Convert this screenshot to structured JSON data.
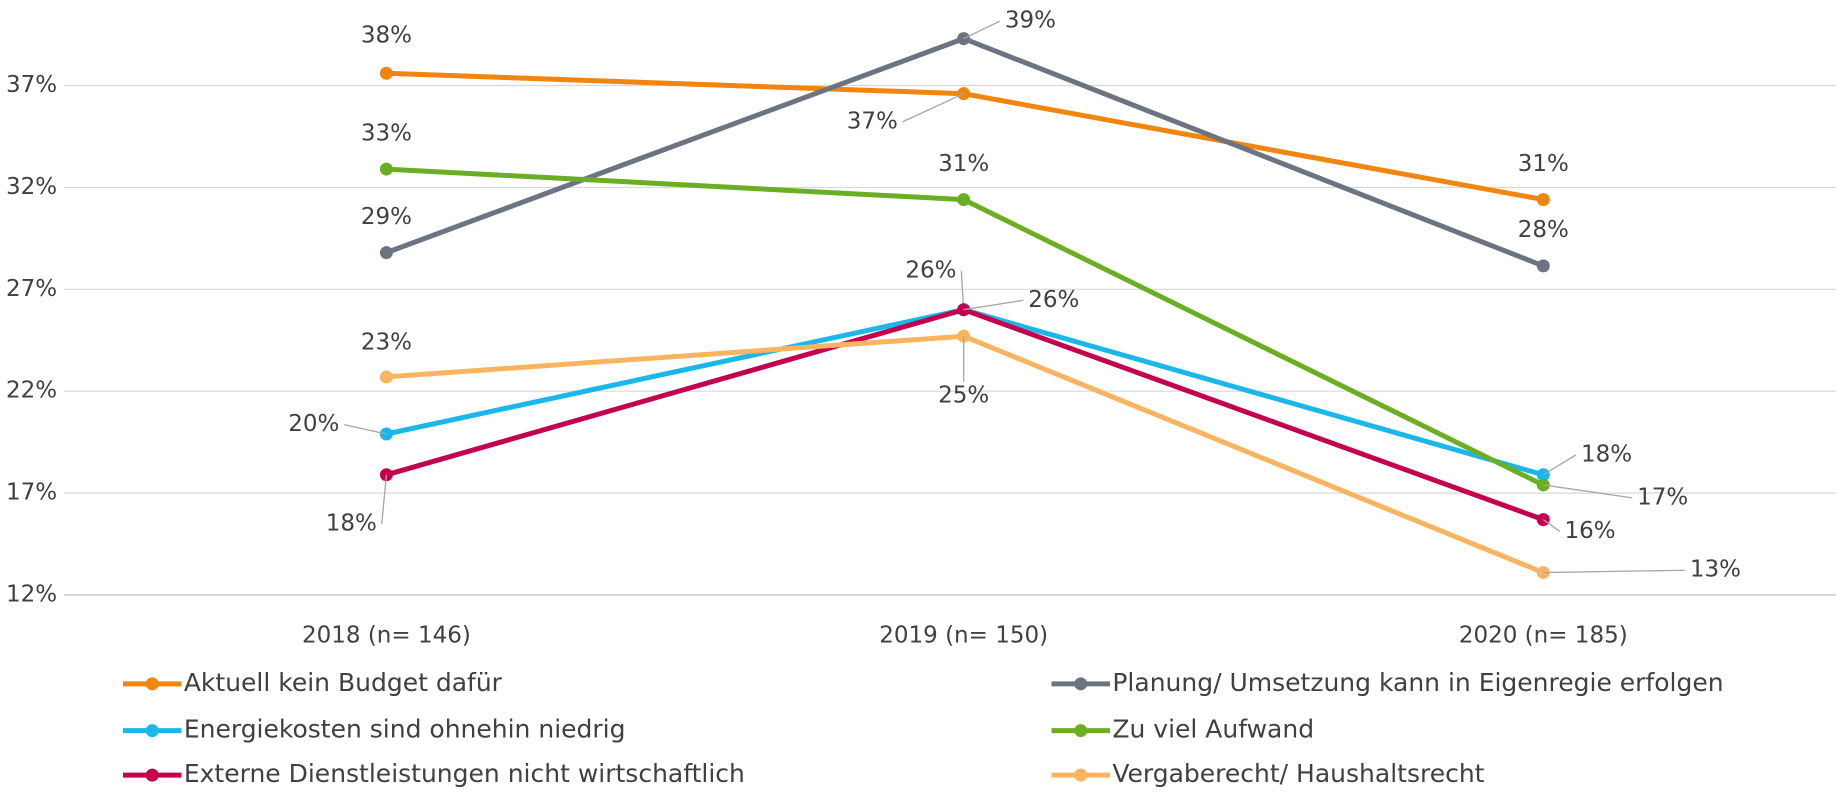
{
  "chart_data": {
    "type": "line",
    "categories": [
      "2018 (n= 146)",
      "2019 (n= 150)",
      "2020 (n= 185)"
    ],
    "series": [
      {
        "name": "Aktuell kein Budget dafür",
        "color": "#f0850f",
        "values": [
          37.6,
          36.6,
          31.4
        ],
        "value_labels": [
          "38%",
          "37%",
          "31%"
        ]
      },
      {
        "name": "Planung/ Umsetzung kann in Eigenregie erfolgen",
        "color": "#6b7480",
        "values": [
          28.8,
          39.3,
          28.15
        ],
        "value_labels": [
          "29%",
          "39%",
          "28%"
        ]
      },
      {
        "name": "Energiekosten sind ohnehin niedrig",
        "color": "#1ab7ea",
        "values": [
          19.9,
          26.0,
          17.9
        ],
        "value_labels": [
          "20%",
          "26%",
          "18%"
        ]
      },
      {
        "name": "Zu viel Aufwand",
        "color": "#6aaf23",
        "values": [
          32.9,
          31.4,
          17.4
        ],
        "value_labels": [
          "33%",
          "31%",
          "17%"
        ]
      },
      {
        "name": "Externe Dienstleistungen nicht wirtschaftlich",
        "color": "#c4004f",
        "values": [
          17.9,
          26.0,
          15.7
        ],
        "value_labels": [
          "18%",
          "26%",
          "16%"
        ]
      },
      {
        "name": "Vergaberecht/ Haushaltsrecht",
        "color": "#f9b45f",
        "values": [
          22.7,
          24.7,
          13.1
        ],
        "value_labels": [
          "23%",
          "25%",
          "13%"
        ]
      }
    ],
    "ylim": [
      12,
      41
    ],
    "yticks": [
      {
        "value": 12,
        "label": "12%"
      },
      {
        "value": 17,
        "label": "17%"
      },
      {
        "value": 22,
        "label": "22%"
      },
      {
        "value": 27,
        "label": "27%"
      },
      {
        "value": 32,
        "label": "32%"
      },
      {
        "value": 37,
        "label": "37%"
      }
    ],
    "grid": true
  }
}
